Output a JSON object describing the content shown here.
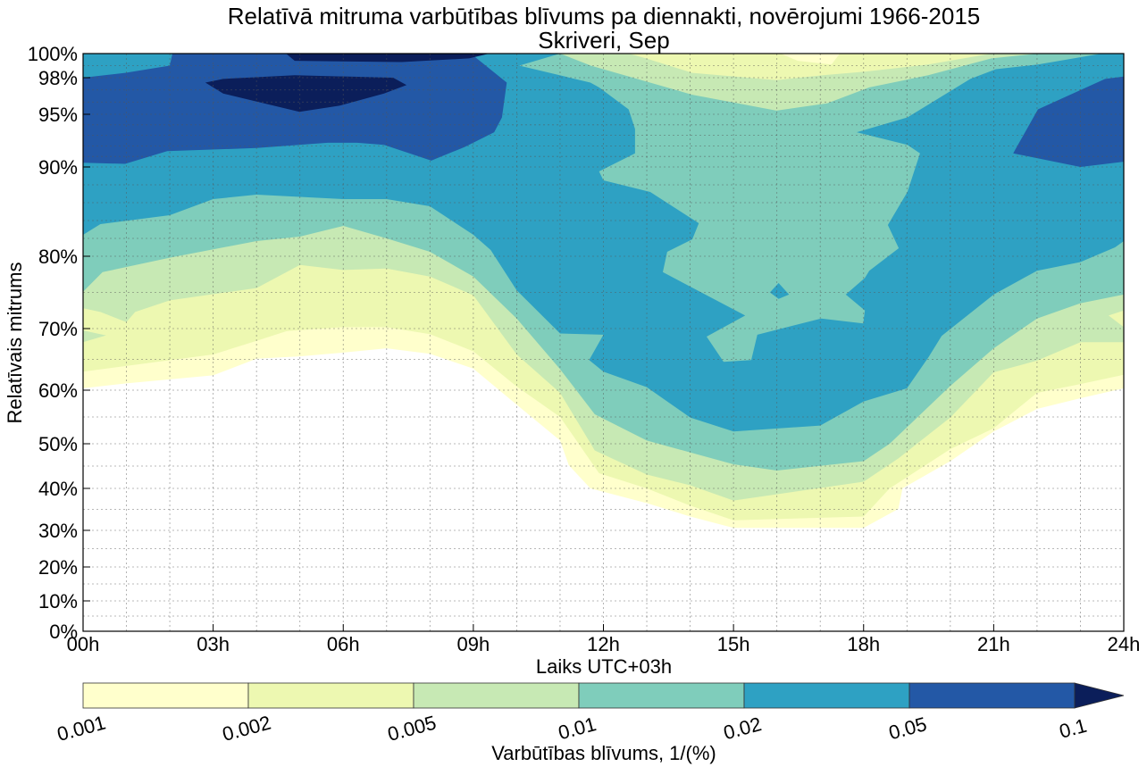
{
  "chart_data": {
    "type": "contour",
    "title": "Relatīvā mitruma varbūtības blīvums pa diennakti, novērojumi 1966-2015",
    "subtitle": "Skriveri, Sep",
    "xlabel": "Laiks UTC+03h",
    "ylabel": "Relatīvais mitrums",
    "xlim": [
      0,
      24
    ],
    "ylim": [
      0,
      100
    ],
    "grid": true,
    "x_ticks": [
      0,
      3,
      6,
      9,
      12,
      15,
      18,
      21,
      24
    ],
    "x_tick_labels": [
      "00h",
      "03h",
      "06h",
      "09h",
      "12h",
      "15h",
      "18h",
      "21h",
      "24h"
    ],
    "y_ticks": [
      0,
      10,
      20,
      30,
      40,
      50,
      60,
      70,
      80,
      90,
      95,
      98,
      100
    ],
    "y_tick_labels": [
      "0%",
      "10%",
      "20%",
      "30%",
      "40%",
      "50%",
      "60%",
      "70%",
      "80%",
      "90%",
      "95%",
      "98%",
      "100%"
    ],
    "colorbar": {
      "label": "Varbūtības blīvums, 1/(%)",
      "levels": [
        0.001,
        0.002,
        0.005,
        0.01,
        0.02,
        0.05,
        0.1
      ],
      "tick_labels": [
        "0.001",
        "0.002",
        "0.005",
        "0.01",
        "0.02",
        "0.05",
        "0.1"
      ],
      "colors": [
        "#ffffcc",
        "#edf8b1",
        "#c7e9b4",
        "#7fcdbb",
        "#2ea1c3",
        "#2358a6",
        "#0b1e5a"
      ],
      "extend": "max",
      "placement": "bottom"
    },
    "lower_boundaries": [
      {
        "level": 0.001,
        "points": [
          [
            0,
            60.3
          ],
          [
            1,
            61.1
          ],
          [
            3,
            62.4
          ],
          [
            4,
            65.1
          ],
          [
            5,
            65.5
          ],
          [
            6,
            66.1
          ],
          [
            7,
            66.8
          ],
          [
            8,
            65.9
          ],
          [
            9,
            63.5
          ],
          [
            10,
            57.3
          ],
          [
            11,
            50.6
          ],
          [
            11.2,
            45.2
          ],
          [
            11.7,
            40
          ],
          [
            13,
            36.5
          ],
          [
            14,
            33.3
          ],
          [
            15,
            30.6
          ],
          [
            18,
            30.6
          ],
          [
            18.8,
            35.1
          ],
          [
            18.9,
            40
          ],
          [
            20,
            46.1
          ],
          [
            21,
            52.3
          ],
          [
            22,
            56.5
          ],
          [
            23,
            58.5
          ],
          [
            24,
            60.3
          ]
        ]
      },
      {
        "level": 0.002,
        "points": [
          [
            0,
            63
          ],
          [
            3,
            65.8
          ],
          [
            4,
            68
          ],
          [
            4.7,
            69.6
          ],
          [
            6,
            70.2
          ],
          [
            7,
            70.2
          ],
          [
            8,
            69.1
          ],
          [
            9,
            66.3
          ],
          [
            10,
            60.6
          ],
          [
            11,
            55
          ],
          [
            11.9,
            43.4
          ],
          [
            13,
            40
          ],
          [
            14,
            35.9
          ],
          [
            15,
            32.4
          ],
          [
            18,
            33.3
          ],
          [
            18.6,
            40
          ],
          [
            20,
            48.8
          ],
          [
            21,
            52.9
          ],
          [
            22,
            59.5
          ],
          [
            23,
            61
          ],
          [
            24,
            62.5
          ]
        ]
      },
      {
        "level": 0.005,
        "points": [
          [
            0,
            72.8
          ],
          [
            0.4,
            72.3
          ],
          [
            1,
            70.9
          ],
          [
            1.2,
            72.3
          ],
          [
            2,
            73.9
          ],
          [
            4,
            75.6
          ],
          [
            5,
            78.8
          ],
          [
            6,
            78.1
          ],
          [
            7,
            78.3
          ],
          [
            8,
            77.2
          ],
          [
            9,
            74.6
          ],
          [
            10,
            65.8
          ],
          [
            11,
            59.5
          ],
          [
            11.8,
            48.5
          ],
          [
            13,
            43.1
          ],
          [
            14,
            40.7
          ],
          [
            15,
            37.1
          ],
          [
            18,
            41.5
          ],
          [
            18.8,
            46.7
          ],
          [
            20,
            54.9
          ],
          [
            21,
            62.9
          ],
          [
            22,
            64.8
          ],
          [
            23,
            67.8
          ],
          [
            24,
            67.8
          ]
        ]
      },
      {
        "level": 0.01,
        "points": [
          [
            0,
            75.1
          ],
          [
            0.45,
            77.8
          ],
          [
            2,
            79.8
          ],
          [
            4,
            81.7
          ],
          [
            5,
            82.2
          ],
          [
            6,
            83.4
          ],
          [
            7,
            82
          ],
          [
            8,
            80.5
          ],
          [
            9,
            77.2
          ],
          [
            10,
            71.4
          ],
          [
            11,
            63.4
          ],
          [
            11.8,
            55.5
          ],
          [
            13,
            50.6
          ],
          [
            15,
            45.4
          ],
          [
            16,
            44
          ],
          [
            18,
            46.1
          ],
          [
            18.6,
            50
          ],
          [
            20,
            60.7
          ],
          [
            21,
            66.8
          ],
          [
            22,
            71.4
          ],
          [
            23,
            73.5
          ],
          [
            24,
            74.7
          ]
        ]
      },
      {
        "level": 0.02,
        "points": [
          [
            0,
            82.4
          ],
          [
            0.4,
            83.6
          ],
          [
            2,
            84.6
          ],
          [
            3,
            86.4
          ],
          [
            4,
            86.9
          ],
          [
            6,
            86.4
          ],
          [
            7,
            86.4
          ],
          [
            8,
            85.6
          ],
          [
            9,
            82.4
          ],
          [
            9.4,
            80.7
          ],
          [
            10,
            75.3
          ],
          [
            11,
            69.2
          ],
          [
            12,
            69
          ],
          [
            11.67,
            64.9
          ],
          [
            12,
            63
          ],
          [
            13,
            60.5
          ],
          [
            14,
            54.9
          ],
          [
            15,
            52.3
          ],
          [
            17,
            53.4
          ],
          [
            18,
            57.9
          ],
          [
            19,
            60.3
          ],
          [
            19.5,
            65.4
          ],
          [
            19.8,
            68.8
          ],
          [
            21,
            74.7
          ],
          [
            22,
            78
          ],
          [
            23,
            79.2
          ],
          [
            23.8,
            81
          ],
          [
            24,
            81.7
          ]
        ]
      }
    ],
    "regions": [
      {
        "level": 0.005,
        "name": "pocket-left",
        "points": [
          [
            0,
            69.7
          ],
          [
            0.53,
            68.9
          ],
          [
            0,
            67.8
          ]
        ]
      },
      {
        "level": 0.002,
        "name": "pocket-right",
        "points": [
          [
            23.65,
            71.8
          ],
          [
            24,
            72.5
          ],
          [
            24,
            70.2
          ]
        ]
      },
      {
        "level": 0.01,
        "name": "central-island",
        "points": [
          [
            11.0,
            100
          ],
          [
            10.06,
            99
          ],
          [
            11.7,
            97.6
          ],
          [
            11.9,
            97.2
          ],
          [
            12.58,
            95.4
          ],
          [
            12.73,
            93.6
          ],
          [
            12.73,
            91.3
          ],
          [
            11.9,
            89.5
          ],
          [
            12.0,
            88.5
          ],
          [
            13.08,
            87.2
          ],
          [
            14.2,
            83.7
          ],
          [
            14.05,
            81.9
          ],
          [
            13.47,
            80.5
          ],
          [
            13.37,
            77.8
          ],
          [
            15.27,
            71.8
          ],
          [
            14.38,
            68.7
          ],
          [
            14.77,
            64.6
          ],
          [
            15.41,
            64.9
          ],
          [
            15.55,
            69.0
          ],
          [
            17.02,
            71.4
          ],
          [
            17.99,
            70.7
          ],
          [
            18.03,
            72.5
          ],
          [
            17.59,
            74.7
          ],
          [
            18.03,
            77.0
          ],
          [
            18.13,
            78.0
          ],
          [
            18.81,
            80.9
          ],
          [
            18.56,
            83.5
          ],
          [
            19.01,
            87.2
          ],
          [
            19.3,
            91.3
          ],
          [
            19.01,
            92.1
          ],
          [
            17.84,
            93.3
          ],
          [
            19.01,
            94.7
          ],
          [
            20.46,
            97.9
          ],
          [
            21.05,
            98.7
          ],
          [
            22.02,
            99.1
          ],
          [
            23.49,
            100
          ]
        ]
      },
      {
        "level": 0.005,
        "name": "top-band",
        "points": [
          [
            11.0,
            100
          ],
          [
            11.71,
            99.0
          ],
          [
            14.05,
            96.6
          ],
          [
            15.99,
            95.3
          ],
          [
            17.16,
            95.9
          ],
          [
            18.13,
            97.2
          ],
          [
            19.49,
            98.2
          ],
          [
            20.95,
            99.6
          ],
          [
            22.02,
            100
          ]
        ]
      },
      {
        "level": 0.002,
        "name": "top-band",
        "points": [
          [
            12.59,
            100
          ],
          [
            12.98,
            99.6
          ],
          [
            14.05,
            98.4
          ],
          [
            15.99,
            97.8
          ],
          [
            17.06,
            98.2
          ],
          [
            18.03,
            98.5
          ],
          [
            19.49,
            99.1
          ],
          [
            20.95,
            100
          ]
        ]
      },
      {
        "level": 0.001,
        "name": "top-spot",
        "points": [
          [
            16.09,
            100
          ],
          [
            16.48,
            99.4
          ],
          [
            17.26,
            99.1
          ],
          [
            17.45,
            100
          ]
        ]
      },
      {
        "level": 0.02,
        "name": "diamond",
        "points": [
          [
            16.04,
            76.3
          ],
          [
            16.28,
            74.7
          ],
          [
            16.04,
            74.1
          ],
          [
            15.84,
            75.0
          ]
        ]
      },
      {
        "level": 0.05,
        "name": "left-block",
        "points": [
          [
            0,
            98.0
          ],
          [
            0.97,
            98.4
          ],
          [
            2.0,
            99.0
          ],
          [
            2.06,
            100
          ],
          [
            8.94,
            100
          ],
          [
            9.77,
            97.6
          ],
          [
            9.66,
            94.7
          ],
          [
            9.48,
            93.3
          ],
          [
            8.8,
            91.9
          ],
          [
            8.03,
            90.6
          ],
          [
            6.94,
            92.1
          ],
          [
            6.32,
            92.3
          ],
          [
            5.64,
            92.3
          ],
          [
            4.0,
            91.8
          ],
          [
            1.94,
            91.5
          ],
          [
            0.97,
            90.3
          ],
          [
            0,
            90.4
          ]
        ]
      },
      {
        "level": 0.05,
        "name": "right-block",
        "points": [
          [
            24,
            98.1
          ],
          [
            23.57,
            97.9
          ],
          [
            22.02,
            95.4
          ],
          [
            21.45,
            91.3
          ],
          [
            23.0,
            90.0
          ],
          [
            24,
            90.5
          ]
        ]
      },
      {
        "level": 0.1,
        "name": "night-core",
        "points": [
          [
            2.82,
            97.6
          ],
          [
            3.23,
            96.7
          ],
          [
            4.99,
            95.2
          ],
          [
            5.91,
            95.7
          ],
          [
            6.94,
            96.7
          ],
          [
            7.46,
            97.4
          ],
          [
            7.15,
            98.0
          ],
          [
            4.88,
            98.2
          ],
          [
            3.23,
            97.9
          ]
        ]
      },
      {
        "level": 0.1,
        "name": "top-strip",
        "points": [
          [
            4.68,
            100
          ],
          [
            9.37,
            100
          ],
          [
            8.9,
            99.6
          ],
          [
            7.35,
            99.3
          ],
          [
            4.88,
            99.4
          ]
        ]
      }
    ]
  }
}
